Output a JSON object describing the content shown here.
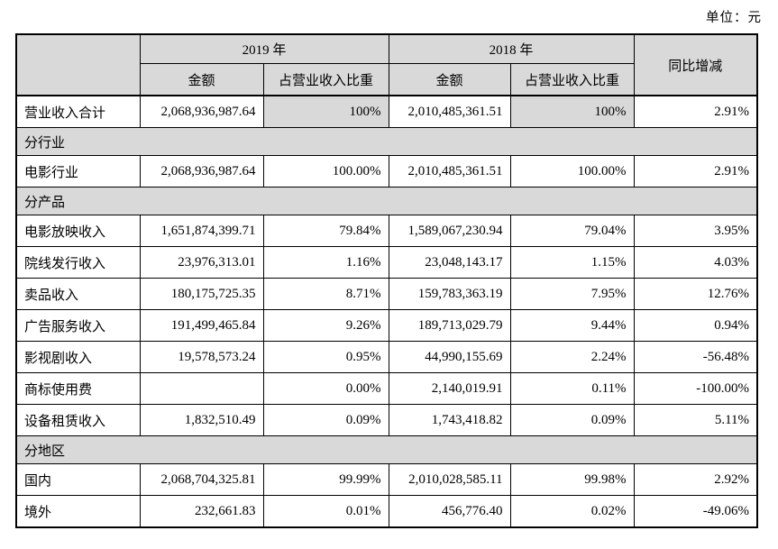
{
  "unit_label": "单位：元",
  "colors": {
    "header_bg": "#d9d9d9",
    "border": "#000000",
    "page_bg": "#ffffff",
    "text": "#000000"
  },
  "header": {
    "corner": "",
    "year_2019": "2019 年",
    "year_2018": "2018 年",
    "yoy": "同比增减",
    "amount_2019": "金额",
    "pct_2019": "占营业收入比重",
    "amount_2018": "金额",
    "pct_2018": "占营业收入比重"
  },
  "rows": [
    {
      "type": "data",
      "shaded_pct": true,
      "label": "营业收入合计",
      "cells": [
        "2,068,936,987.64",
        "100%",
        "2,010,485,361.51",
        "100%",
        "2.91%"
      ]
    },
    {
      "type": "section",
      "label": "分行业"
    },
    {
      "type": "data",
      "label": "电影行业",
      "cells": [
        "2,068,936,987.64",
        "100.00%",
        "2,010,485,361.51",
        "100.00%",
        "2.91%"
      ]
    },
    {
      "type": "section",
      "label": "分产品"
    },
    {
      "type": "data",
      "label": "电影放映收入",
      "cells": [
        "1,651,874,399.71",
        "79.84%",
        "1,589,067,230.94",
        "79.04%",
        "3.95%"
      ]
    },
    {
      "type": "data",
      "label": "院线发行收入",
      "cells": [
        "23,976,313.01",
        "1.16%",
        "23,048,143.17",
        "1.15%",
        "4.03%"
      ]
    },
    {
      "type": "data",
      "label": "卖品收入",
      "cells": [
        "180,175,725.35",
        "8.71%",
        "159,783,363.19",
        "7.95%",
        "12.76%"
      ]
    },
    {
      "type": "data",
      "label": "广告服务收入",
      "cells": [
        "191,499,465.84",
        "9.26%",
        "189,713,029.79",
        "9.44%",
        "0.94%"
      ]
    },
    {
      "type": "data",
      "label": "影视剧收入",
      "cells": [
        "19,578,573.24",
        "0.95%",
        "44,990,155.69",
        "2.24%",
        "-56.48%"
      ]
    },
    {
      "type": "data",
      "label": "商标使用费",
      "cells": [
        "",
        "0.00%",
        "2,140,019.91",
        "0.11%",
        "-100.00%"
      ]
    },
    {
      "type": "data",
      "label": "设备租赁收入",
      "cells": [
        "1,832,510.49",
        "0.09%",
        "1,743,418.82",
        "0.09%",
        "5.11%"
      ]
    },
    {
      "type": "section",
      "label": "分地区"
    },
    {
      "type": "data",
      "label": "国内",
      "cells": [
        "2,068,704,325.81",
        "99.99%",
        "2,010,028,585.11",
        "99.98%",
        "2.92%"
      ]
    },
    {
      "type": "data",
      "label": "境外",
      "cells": [
        "232,661.83",
        "0.01%",
        "456,776.40",
        "0.02%",
        "-49.06%"
      ]
    }
  ]
}
